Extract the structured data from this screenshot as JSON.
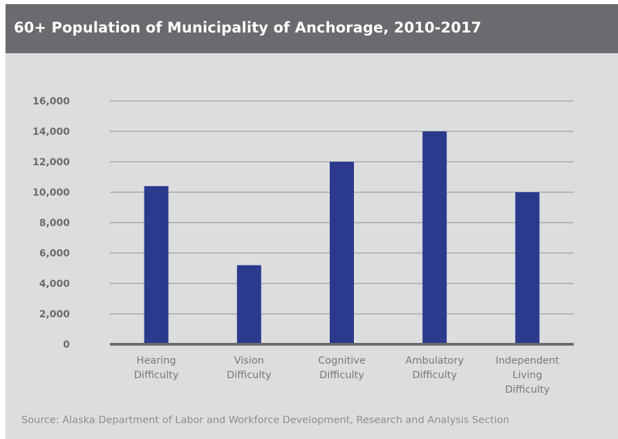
{
  "chart_data": {
    "type": "bar",
    "title": "60+ Population of Municipality of Anchorage, 2010-2017",
    "categories": [
      [
        "Hearing",
        "Difficulty"
      ],
      [
        "Vision",
        "Difficulty"
      ],
      [
        "Cognitive",
        "Difficulty"
      ],
      [
        "Ambulatory",
        "Difficulty"
      ],
      [
        "Independent",
        "Living",
        "Difficulty"
      ]
    ],
    "values": [
      10400,
      5200,
      12000,
      14000,
      10000
    ],
    "yticks": [
      "0",
      "2,000",
      "4,000",
      "6,000",
      "8,000",
      "10,000",
      "12,000",
      "14,000",
      "16,000"
    ],
    "ylim": [
      0,
      16000
    ],
    "grid": true,
    "bar_color": "#2b3a8c",
    "source": "Source:  Alaska Department of Labor and Workforce Development, Research and Analysis Section"
  }
}
